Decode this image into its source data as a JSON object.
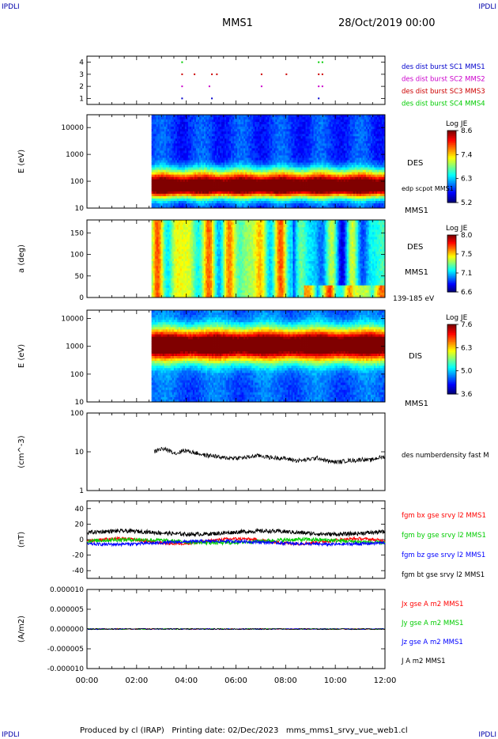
{
  "header": {
    "corner_label": "IPDLI",
    "title": "MMS1",
    "date": "28/Oct/2019 00:00"
  },
  "footer": {
    "text": "Produced by cl (IRAP)   Printing date: 02/Dec/2023   mms_mms1_srvy_vue_web1.cl"
  },
  "colors": {
    "red": "#ff0000",
    "green": "#00cc00",
    "blue": "#0000ff",
    "magenta": "#cc00cc",
    "black": "#000000"
  },
  "chart_data": [
    {
      "type": "scatter",
      "panel": "burst",
      "ylim": [
        0.5,
        4.5
      ],
      "yticks": [
        "1",
        "2",
        "3",
        "4"
      ],
      "series": [
        {
          "name": "des dist burst SC1 MMS1",
          "color": "#0000cc",
          "level": 1,
          "x_hours": [
            3.8,
            5.0,
            9.3
          ]
        },
        {
          "name": "des dist burst SC2 MMS2",
          "color": "#cc00cc",
          "level": 2,
          "x_hours": [
            3.8,
            4.9,
            7.0,
            9.3,
            9.45
          ]
        },
        {
          "name": "des dist burst SC3 MMS3",
          "color": "#cc0000",
          "level": 3,
          "x_hours": [
            3.8,
            4.3,
            5.0,
            5.2,
            7.0,
            8.0,
            9.3,
            9.45
          ]
        },
        {
          "name": "des dist burst SC4 MMS4",
          "color": "#00cc00",
          "level": 4,
          "x_hours": [
            3.8,
            9.3,
            9.45
          ]
        }
      ]
    },
    {
      "type": "heatmap",
      "panel": "des-energy",
      "ylabel": "E (eV)",
      "yscale": "log",
      "ylim": [
        10,
        30000
      ],
      "yticks": [
        "10",
        "100",
        "1000",
        "10000"
      ],
      "start_hour": 2.6,
      "colorbar": {
        "title": "Log JE",
        "ticks": [
          "8.6",
          "7.4",
          "6.3",
          "5.2"
        ]
      },
      "right_labels": [
        "DES",
        "MMS1"
      ],
      "overlay_label": "edp scpot MMS1"
    },
    {
      "type": "heatmap",
      "panel": "des-pitch",
      "ylabel": "a (deg)",
      "ylim": [
        0,
        180
      ],
      "yticks": [
        "0",
        "50",
        "100",
        "150"
      ],
      "start_hour": 2.6,
      "colorbar": {
        "title": "Log JE",
        "ticks": [
          "8.0",
          "7.5",
          "7.1",
          "6.6"
        ]
      },
      "right_labels": [
        "DES",
        "MMS1",
        "139-185 eV"
      ]
    },
    {
      "type": "heatmap",
      "panel": "dis-energy",
      "ylabel": "E (eV)",
      "yscale": "log",
      "ylim": [
        10,
        20000
      ],
      "yticks": [
        "10",
        "100",
        "1000",
        "10000"
      ],
      "start_hour": 2.6,
      "colorbar": {
        "title": "Log JE",
        "ticks": [
          "7.6",
          "6.3",
          "5.0",
          "3.6"
        ]
      },
      "right_labels": [
        "DIS",
        "MMS1"
      ]
    },
    {
      "type": "line",
      "panel": "density",
      "ylabel": "(cm^-3)",
      "yscale": "log",
      "ylim": [
        1,
        100
      ],
      "yticks": [
        "1",
        "10",
        "100"
      ],
      "series": [
        {
          "name": "des numberdensity fast M",
          "color": "#000000",
          "x": [
            2.7,
            3.0,
            3.3,
            3.6,
            3.9,
            4.2,
            4.5,
            4.8,
            5.1,
            5.4,
            5.7,
            6.0,
            6.3,
            6.6,
            6.9,
            7.2,
            7.5,
            7.8,
            8.1,
            8.4,
            8.7,
            9.0,
            9.3,
            9.6,
            9.9,
            10.2,
            10.5,
            10.8,
            11.1,
            11.4,
            11.7,
            12.0
          ],
          "values": [
            10,
            12,
            11,
            9,
            11,
            10,
            9,
            8,
            8,
            7,
            7,
            7,
            7,
            7.5,
            8,
            7.5,
            7,
            7,
            6.5,
            6,
            6,
            6.5,
            7,
            6,
            5.5,
            5.5,
            6,
            6,
            6.5,
            6,
            7,
            7.5
          ]
        }
      ]
    },
    {
      "type": "line",
      "panel": "magnetic",
      "ylabel": "(nT)",
      "ylim": [
        -50,
        50
      ],
      "yticks": [
        "-40",
        "-20",
        "0",
        "20",
        "40"
      ],
      "series": [
        {
          "name": "fgm bx gse srvy l2 MMS1",
          "color": "#ff0000"
        },
        {
          "name": "fgm by gse srvy l2 MMS1",
          "color": "#00cc00"
        },
        {
          "name": "fgm bz gse srvy l2 MMS1",
          "color": "#0000ff"
        },
        {
          "name": "fgm bt gse srvy l2 MMS1",
          "color": "#000000"
        }
      ]
    },
    {
      "type": "line",
      "panel": "current",
      "ylabel": "(A/m2)",
      "ylim": [
        -1e-05,
        1e-05
      ],
      "yticks": [
        "-0.000010",
        "-0.000005",
        "0.000000",
        "0.000005",
        "0.000010"
      ],
      "series": [
        {
          "name": "Jx gse A m2 MMS1",
          "color": "#ff0000"
        },
        {
          "name": "Jy gse A m2 MMS1",
          "color": "#00cc00"
        },
        {
          "name": "Jz gse A m2 MMS1",
          "color": "#0000ff"
        },
        {
          "name": "J A m2 MMS1",
          "color": "#000000"
        }
      ]
    }
  ],
  "xaxis": {
    "ticks": [
      "00:00",
      "02:00",
      "04:00",
      "06:00",
      "08:00",
      "10:00",
      "12:00"
    ],
    "range_hours": [
      0,
      12
    ]
  }
}
